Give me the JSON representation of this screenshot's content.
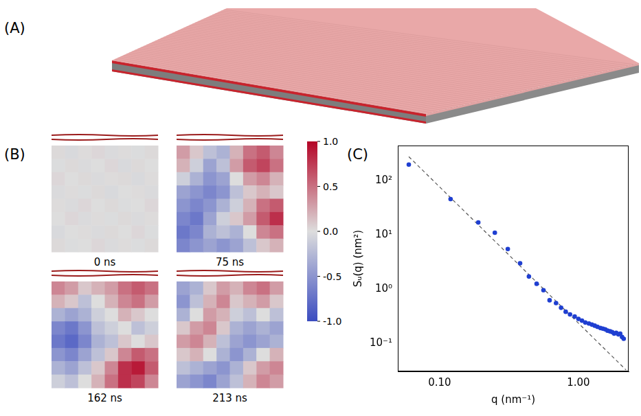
{
  "panel_labels": [
    "(A)",
    "(B)",
    "(C)"
  ],
  "heatmaps": {
    "maps": [
      {
        "label": "0 ns",
        "cells": [
          [
            0.02,
            -0.03,
            0.01,
            0.03,
            -0.02,
            0.01,
            -0.01,
            0.02
          ],
          [
            -0.01,
            0.02,
            -0.02,
            0.0,
            0.03,
            -0.03,
            0.02,
            0.0
          ],
          [
            0.03,
            0.0,
            0.02,
            -0.02,
            0.01,
            0.02,
            -0.03,
            0.01
          ],
          [
            -0.02,
            0.01,
            -0.01,
            0.02,
            -0.03,
            0.0,
            0.01,
            -0.02
          ],
          [
            0.01,
            -0.02,
            0.03,
            0.0,
            0.02,
            -0.01,
            0.0,
            0.03
          ],
          [
            0.0,
            0.03,
            -0.02,
            0.01,
            -0.01,
            0.02,
            -0.02,
            0.01
          ],
          [
            -0.03,
            0.0,
            0.01,
            -0.02,
            0.02,
            0.0,
            0.03,
            -0.01
          ],
          [
            0.02,
            -0.01,
            0.0,
            0.03,
            -0.02,
            0.01,
            -0.01,
            0.02
          ]
        ]
      },
      {
        "label": "75 ns",
        "cells": [
          [
            0.3,
            0.1,
            -0.2,
            -0.3,
            0.2,
            0.5,
            0.6,
            0.4
          ],
          [
            0.2,
            -0.1,
            -0.4,
            -0.2,
            0.3,
            0.6,
            0.7,
            0.5
          ],
          [
            -0.1,
            -0.3,
            -0.5,
            -0.4,
            0.0,
            0.3,
            0.4,
            0.2
          ],
          [
            -0.4,
            -0.5,
            -0.6,
            -0.5,
            -0.2,
            0.1,
            0.2,
            0.1
          ],
          [
            -0.5,
            -0.6,
            -0.5,
            -0.3,
            -0.1,
            0.2,
            0.5,
            0.6
          ],
          [
            -0.6,
            -0.7,
            -0.4,
            -0.1,
            0.1,
            0.3,
            0.6,
            0.8
          ],
          [
            -0.7,
            -0.6,
            -0.3,
            -0.2,
            -0.3,
            0.0,
            0.4,
            0.5
          ],
          [
            -0.6,
            -0.5,
            -0.4,
            -0.5,
            -0.4,
            -0.2,
            0.1,
            0.2
          ]
        ]
      },
      {
        "label": "162 ns",
        "cells": [
          [
            0.4,
            0.3,
            0.1,
            0.2,
            0.3,
            0.5,
            0.6,
            0.5
          ],
          [
            0.2,
            0.1,
            -0.2,
            0.0,
            0.2,
            0.4,
            0.5,
            0.3
          ],
          [
            -0.3,
            -0.4,
            -0.3,
            -0.1,
            0.0,
            0.2,
            0.1,
            0.0
          ],
          [
            -0.6,
            -0.7,
            -0.5,
            -0.2,
            -0.1,
            0.0,
            -0.2,
            -0.1
          ],
          [
            -0.7,
            -0.8,
            -0.6,
            -0.3,
            -0.2,
            0.1,
            0.0,
            0.1
          ],
          [
            -0.5,
            -0.6,
            -0.4,
            -0.2,
            0.1,
            0.4,
            0.6,
            0.5
          ],
          [
            -0.3,
            -0.4,
            -0.2,
            0.1,
            0.4,
            0.8,
            0.9,
            0.6
          ],
          [
            -0.1,
            -0.2,
            0.0,
            0.2,
            0.5,
            0.8,
            0.7,
            0.4
          ]
        ]
      },
      {
        "label": "213 ns",
        "cells": [
          [
            -0.4,
            -0.3,
            0.1,
            0.3,
            0.2,
            0.4,
            0.5,
            0.3
          ],
          [
            -0.5,
            -0.2,
            0.2,
            0.4,
            0.1,
            0.2,
            0.3,
            0.1
          ],
          [
            -0.3,
            0.0,
            0.3,
            0.2,
            -0.1,
            -0.2,
            0.0,
            -0.2
          ],
          [
            0.1,
            0.3,
            0.4,
            0.1,
            -0.3,
            -0.4,
            -0.3,
            -0.4
          ],
          [
            0.3,
            0.4,
            0.2,
            -0.2,
            -0.4,
            -0.5,
            -0.4,
            -0.3
          ],
          [
            0.1,
            0.2,
            0.0,
            -0.3,
            -0.5,
            -0.3,
            0.0,
            0.2
          ],
          [
            -0.2,
            -0.3,
            -0.4,
            -0.5,
            -0.3,
            0.1,
            0.3,
            0.4
          ],
          [
            -0.4,
            -0.5,
            -0.6,
            -0.4,
            -0.2,
            0.2,
            0.4,
            0.3
          ]
        ]
      }
    ],
    "colorbar": {
      "range": [
        -1.0,
        1.0
      ],
      "ticks": [
        {
          "value": 1.0,
          "label": "1.0"
        },
        {
          "value": 0.5,
          "label": "0.5"
        },
        {
          "value": 0.0,
          "label": "0.0"
        },
        {
          "value": -0.5,
          "label": "-0.5"
        },
        {
          "value": -1.0,
          "label": "-1.0"
        }
      ]
    }
  },
  "chart_data": {
    "type": "scatter",
    "x_label": "q (nm⁻¹)",
    "y_label": "Sᵤ(q) (nm²)",
    "log": true,
    "grid": false,
    "xlim": [
      0.05,
      2.3
    ],
    "ylim": [
      0.03,
      450
    ],
    "xticks": [
      {
        "value": 0.1,
        "label": "0.10"
      },
      {
        "value": 1,
        "label": "1.00"
      }
    ],
    "yticks": [
      {
        "value": 0.1,
        "label": "10⁻¹"
      },
      {
        "value": 1,
        "label": "10⁰"
      },
      {
        "value": 10,
        "label": "10¹"
      },
      {
        "value": 100,
        "label": "10²"
      }
    ],
    "series": [
      {
        "type": "scatter",
        "color": "#1f3fd1",
        "marker": "circle",
        "x": [
          0.06,
          0.12,
          0.19,
          0.25,
          0.31,
          0.38,
          0.44,
          0.5,
          0.56,
          0.62,
          0.69,
          0.75,
          0.81,
          0.87,
          0.94,
          1.0,
          1.06,
          1.12,
          1.19,
          1.25,
          1.31,
          1.37,
          1.44,
          1.5,
          1.56,
          1.62,
          1.69,
          1.75,
          1.81,
          1.87,
          1.94,
          2.0,
          2.06,
          2.12
        ],
        "values": [
          200,
          46,
          17,
          11,
          5.5,
          3.0,
          1.7,
          1.25,
          0.95,
          0.62,
          0.55,
          0.45,
          0.38,
          0.34,
          0.31,
          0.28,
          0.26,
          0.24,
          0.23,
          0.22,
          0.21,
          0.2,
          0.19,
          0.185,
          0.18,
          0.17,
          0.165,
          0.16,
          0.15,
          0.155,
          0.145,
          0.15,
          0.13,
          0.12
        ]
      },
      {
        "type": "line",
        "color": "#555555",
        "line_style": "dashed",
        "x": [
          0.06,
          2.2
        ],
        "values": [
          280,
          0.032
        ]
      }
    ]
  }
}
